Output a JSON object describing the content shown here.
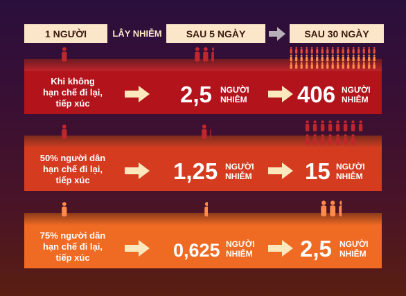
{
  "header": {
    "col1": "1 NGƯỜI",
    "col2": "LÂY NHIỄM",
    "col3": "SAU 5 NGÀY",
    "col4": "SAU 30 NGÀY",
    "arrow_icon": "arrow-right-icon"
  },
  "colors": {
    "header_box": "#fbe6c9",
    "row1": "#b3131b",
    "row2": "#d43b1f",
    "row3": "#ef6a22",
    "people_red": "#c0272d",
    "people_orange": "#ff8a4a",
    "arrow": "#fde7bd"
  },
  "rows": [
    {
      "label_lines": [
        "Khi không",
        "hạn chế đi lại,",
        "tiếp xúc"
      ],
      "day5_value": "2,5",
      "day30_value": "406",
      "day5_people": 2.5,
      "day30_people": 406
    },
    {
      "label_lines": [
        "50% người dân",
        "hạn chế đi lại,",
        "tiếp xúc"
      ],
      "day5_value": "1,25",
      "day30_value": "15",
      "day5_people": 1.25,
      "day30_people": 15
    },
    {
      "label_lines": [
        "75% người dân",
        "hạn chế đi lại,",
        "tiếp xúc"
      ],
      "day5_value": "0,625",
      "day30_value": "2,5",
      "day5_people": 0.625,
      "day30_people": 2.5
    }
  ],
  "unit": {
    "line1": "NGƯỜI",
    "line2": "NHIỄM"
  }
}
